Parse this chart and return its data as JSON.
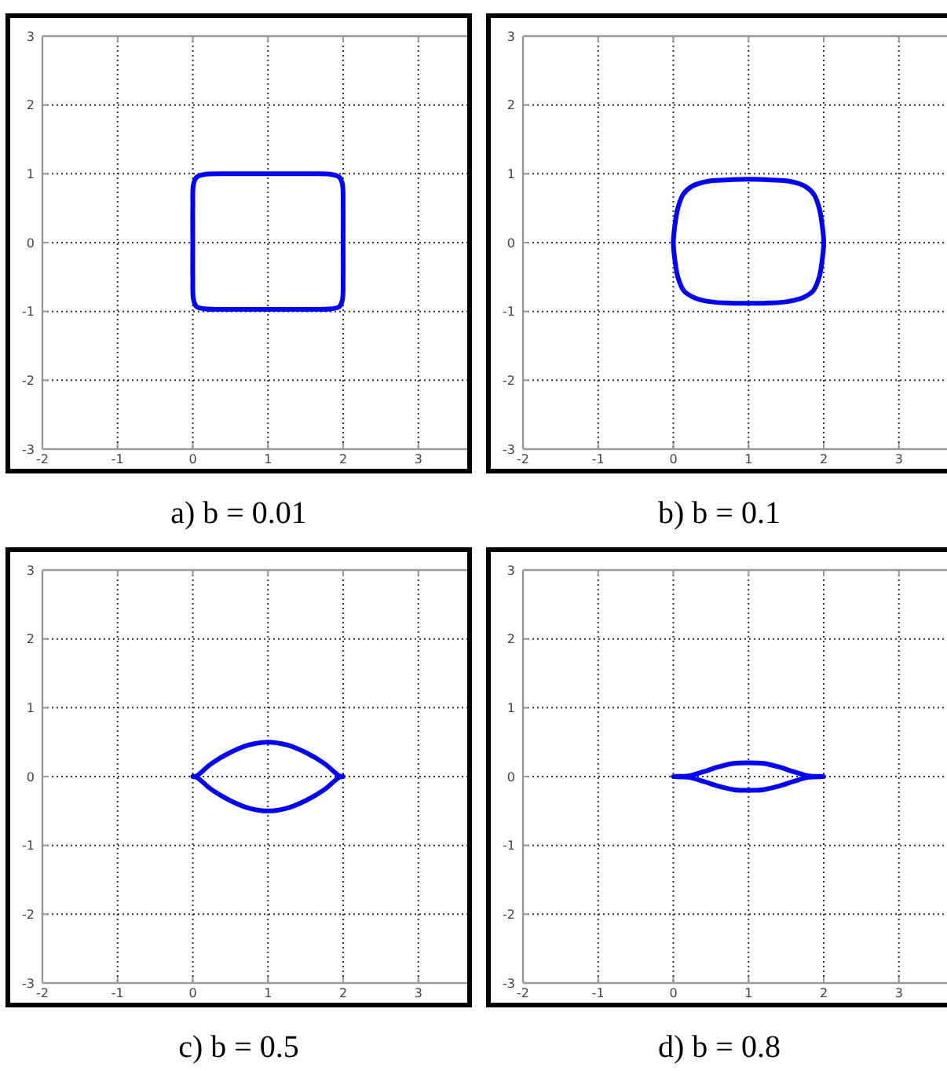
{
  "chart_data": [
    {
      "type": "line",
      "title": "a) b = 0.01",
      "xlim": [
        -2,
        3.65
      ],
      "ylim": [
        -3,
        3
      ],
      "xticks": [
        -2,
        -1,
        0,
        1,
        2,
        3
      ],
      "yticks": [
        -3,
        -2,
        -1,
        0,
        1,
        2,
        3
      ],
      "grid": true
    },
    {
      "type": "line",
      "title": "b) b = 0.1",
      "xlim": [
        -2,
        3.65
      ],
      "ylim": [
        -3,
        3
      ],
      "xticks": [
        -2,
        -1,
        0,
        1,
        2,
        3
      ],
      "yticks": [
        -3,
        -2,
        -1,
        0,
        1,
        2,
        3
      ],
      "grid": true
    },
    {
      "type": "line",
      "title": "c) b = 0.5",
      "xlim": [
        -2,
        3.65
      ],
      "ylim": [
        -3,
        3
      ],
      "xticks": [
        -2,
        -1,
        0,
        1,
        2,
        3
      ],
      "yticks": [
        -3,
        -2,
        -1,
        0,
        1,
        2,
        3
      ],
      "grid": true
    },
    {
      "type": "line",
      "title": "d) b = 0.8",
      "xlim": [
        -2,
        3.65
      ],
      "ylim": [
        -3,
        3
      ],
      "xticks": [
        -2,
        -1,
        0,
        1,
        2,
        3
      ],
      "yticks": [
        -3,
        -2,
        -1,
        0,
        1,
        2,
        3
      ],
      "grid": true
    }
  ]
}
